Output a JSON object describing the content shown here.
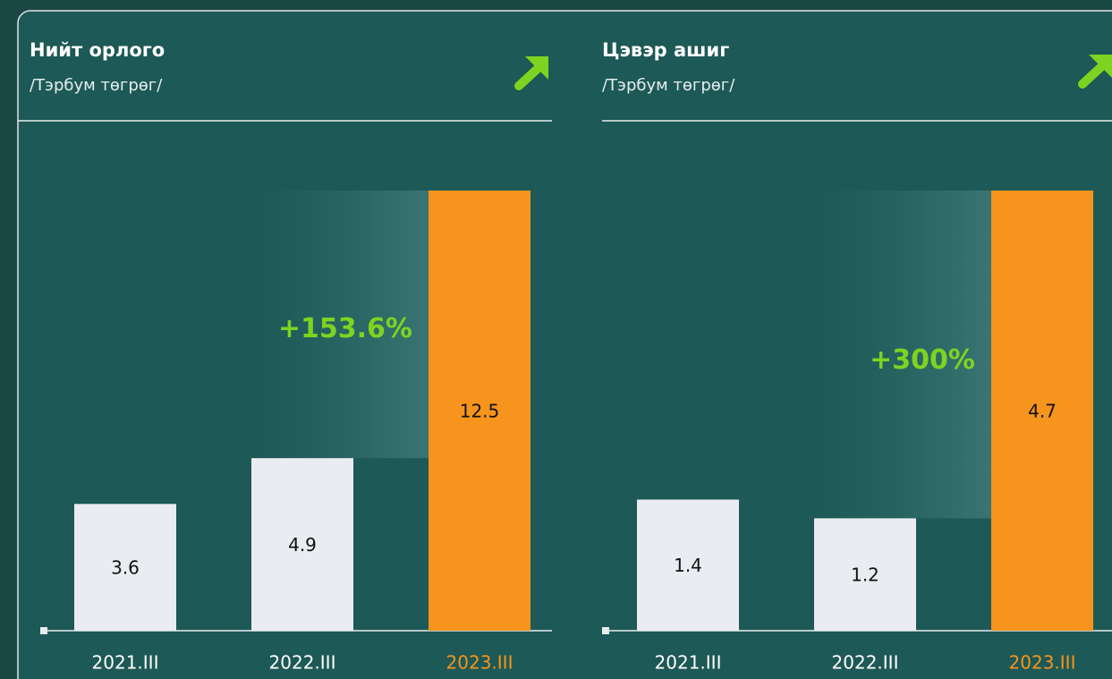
{
  "chart_data": [
    {
      "type": "bar",
      "title": "Нийт орлого",
      "subtitle": "/Тэрбум төгрөг/",
      "categories": [
        "2021.III",
        "2022.III",
        "2023.III"
      ],
      "values": [
        3.6,
        4.9,
        12.5
      ],
      "colors": [
        "#e9ecf1",
        "#e9ecf1",
        "#f7941d"
      ],
      "label_colors": [
        "#ffffff",
        "#ffffff",
        "#f7941d"
      ],
      "annotation": "+153.6%",
      "annotation_color": "#7ed321",
      "ylim": [
        0,
        12.5
      ]
    },
    {
      "type": "bar",
      "title": "Цэвэр ашиг",
      "subtitle": "/Тэрбум төгрөг/",
      "categories": [
        "2021.III",
        "2022.III",
        "2023.III"
      ],
      "values": [
        1.4,
        1.2,
        4.7
      ],
      "colors": [
        "#e9ecf1",
        "#e9ecf1",
        "#f7941d"
      ],
      "label_colors": [
        "#ffffff",
        "#ffffff",
        "#f7941d"
      ],
      "annotation": "+300%",
      "annotation_color": "#7ed321",
      "ylim": [
        0,
        4.7
      ]
    }
  ]
}
